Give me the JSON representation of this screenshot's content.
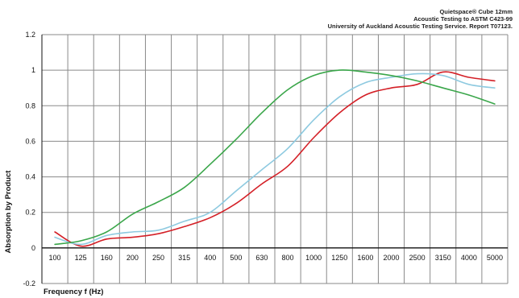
{
  "header": {
    "line1": "Quietspace® Cube 12mm",
    "line2": "Acoustic Testing to ASTM C423-99",
    "line3": "University of Auckland Acoustic Testing Service. Report T07123."
  },
  "chart_data": {
    "type": "line",
    "title": "",
    "xlabel": "Frequency f (Hz)",
    "ylabel": "Absorption by Product",
    "categories": [
      "100",
      "125",
      "160",
      "200",
      "250",
      "315",
      "400",
      "500",
      "630",
      "800",
      "1000",
      "1250",
      "1600",
      "2000",
      "2500",
      "3150",
      "4000",
      "5000"
    ],
    "ylim": [
      -0.2,
      1.2
    ],
    "yticks": [
      "-0.2",
      "0",
      "0.2",
      "0.4",
      "0.6",
      "0.8",
      "1",
      "1.2"
    ],
    "grid": true,
    "series": [
      {
        "color": "#d42027",
        "values": [
          0.09,
          0.01,
          0.05,
          0.06,
          0.08,
          0.12,
          0.17,
          0.25,
          0.36,
          0.46,
          0.62,
          0.76,
          0.86,
          0.9,
          0.92,
          0.99,
          0.96,
          0.94
        ]
      },
      {
        "color": "#8ecae0",
        "values": [
          0.06,
          0.02,
          0.07,
          0.09,
          0.1,
          0.15,
          0.2,
          0.32,
          0.44,
          0.56,
          0.72,
          0.85,
          0.93,
          0.96,
          0.98,
          0.97,
          0.92,
          0.9
        ]
      },
      {
        "color": "#3aa64a",
        "values": [
          0.02,
          0.04,
          0.09,
          0.19,
          0.26,
          0.34,
          0.47,
          0.61,
          0.76,
          0.89,
          0.97,
          1.0,
          0.99,
          0.97,
          0.94,
          0.9,
          0.86,
          0.81
        ]
      }
    ]
  }
}
